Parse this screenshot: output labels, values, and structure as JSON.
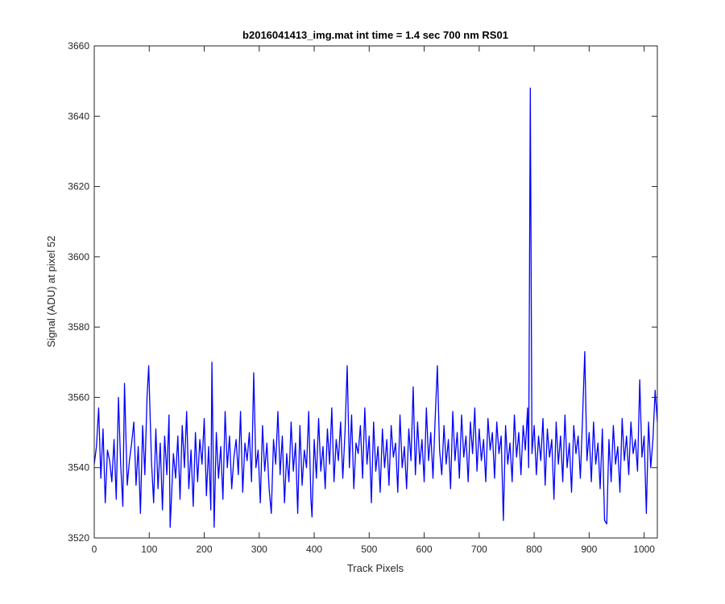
{
  "chart_data": {
    "type": "line",
    "title": "b2016041413_img.mat int time = 1.4 sec  700 nm RS01",
    "xlabel": "Track Pixels",
    "ylabel": "Signal (ADU) at pixel 52",
    "xlim": [
      0,
      1024
    ],
    "ylim": [
      3520,
      3660
    ],
    "xticks": [
      0,
      100,
      200,
      300,
      400,
      500,
      600,
      700,
      800,
      900,
      1000
    ],
    "yticks": [
      3520,
      3540,
      3560,
      3580,
      3600,
      3620,
      3640,
      3660
    ],
    "xtick_labels": [
      "0",
      "100",
      "200",
      "300",
      "400",
      "500",
      "600",
      "700",
      "800",
      "900",
      "1000"
    ],
    "ytick_labels": [
      "3520",
      "3540",
      "3560",
      "3580",
      "3600",
      "3620",
      "3640",
      "3660"
    ],
    "grid": false,
    "series": [
      {
        "color": "#0000ff",
        "points": [
          [
            0,
            3541
          ],
          [
            4,
            3546
          ],
          [
            8,
            3557
          ],
          [
            12,
            3537
          ],
          [
            16,
            3551
          ],
          [
            20,
            3530
          ],
          [
            24,
            3545
          ],
          [
            28,
            3542
          ],
          [
            32,
            3536
          ],
          [
            36,
            3548
          ],
          [
            40,
            3531
          ],
          [
            44,
            3560
          ],
          [
            48,
            3541
          ],
          [
            52,
            3529
          ],
          [
            55,
            3564
          ],
          [
            60,
            3535
          ],
          [
            64,
            3542
          ],
          [
            68,
            3547
          ],
          [
            72,
            3553
          ],
          [
            76,
            3535
          ],
          [
            80,
            3546
          ],
          [
            84,
            3527
          ],
          [
            88,
            3552
          ],
          [
            92,
            3538
          ],
          [
            96,
            3560
          ],
          [
            99,
            3569
          ],
          [
            104,
            3542
          ],
          [
            108,
            3530
          ],
          [
            112,
            3551
          ],
          [
            116,
            3534
          ],
          [
            120,
            3547
          ],
          [
            124,
            3528
          ],
          [
            128,
            3549
          ],
          [
            132,
            3538
          ],
          [
            136,
            3555
          ],
          [
            138,
            3523
          ],
          [
            144,
            3544
          ],
          [
            148,
            3537
          ],
          [
            152,
            3549
          ],
          [
            156,
            3531
          ],
          [
            160,
            3552
          ],
          [
            164,
            3540
          ],
          [
            168,
            3556
          ],
          [
            172,
            3534
          ],
          [
            176,
            3545
          ],
          [
            180,
            3529
          ],
          [
            184,
            3550
          ],
          [
            188,
            3536
          ],
          [
            192,
            3548
          ],
          [
            196,
            3541
          ],
          [
            200,
            3554
          ],
          [
            204,
            3532
          ],
          [
            208,
            3546
          ],
          [
            212,
            3528
          ],
          [
            214,
            3570
          ],
          [
            218,
            3523
          ],
          [
            222,
            3550
          ],
          [
            226,
            3537
          ],
          [
            230,
            3546
          ],
          [
            234,
            3531
          ],
          [
            238,
            3556
          ],
          [
            242,
            3540
          ],
          [
            246,
            3549
          ],
          [
            250,
            3534
          ],
          [
            254,
            3543
          ],
          [
            258,
            3548
          ],
          [
            262,
            3538
          ],
          [
            266,
            3556
          ],
          [
            270,
            3533
          ],
          [
            274,
            3547
          ],
          [
            278,
            3542
          ],
          [
            282,
            3550
          ],
          [
            286,
            3536
          ],
          [
            290,
            3567
          ],
          [
            294,
            3540
          ],
          [
            298,
            3545
          ],
          [
            302,
            3530
          ],
          [
            306,
            3552
          ],
          [
            310,
            3539
          ],
          [
            314,
            3547
          ],
          [
            318,
            3534
          ],
          [
            322,
            3527
          ],
          [
            326,
            3548
          ],
          [
            330,
            3541
          ],
          [
            334,
            3556
          ],
          [
            338,
            3538
          ],
          [
            342,
            3549
          ],
          [
            346,
            3530
          ],
          [
            350,
            3544
          ],
          [
            354,
            3536
          ],
          [
            358,
            3553
          ],
          [
            362,
            3539
          ],
          [
            366,
            3547
          ],
          [
            370,
            3527
          ],
          [
            374,
            3552
          ],
          [
            378,
            3535
          ],
          [
            382,
            3545
          ],
          [
            386,
            3540
          ],
          [
            390,
            3556
          ],
          [
            394,
            3531
          ],
          [
            396,
            3526
          ],
          [
            400,
            3548
          ],
          [
            404,
            3537
          ],
          [
            408,
            3554
          ],
          [
            412,
            3539
          ],
          [
            416,
            3546
          ],
          [
            420,
            3534
          ],
          [
            424,
            3551
          ],
          [
            428,
            3541
          ],
          [
            432,
            3557
          ],
          [
            436,
            3536
          ],
          [
            440,
            3548
          ],
          [
            444,
            3542
          ],
          [
            448,
            3553
          ],
          [
            452,
            3537
          ],
          [
            456,
            3550
          ],
          [
            460,
            3569
          ],
          [
            464,
            3540
          ],
          [
            468,
            3555
          ],
          [
            472,
            3534
          ],
          [
            476,
            3547
          ],
          [
            480,
            3544
          ],
          [
            484,
            3552
          ],
          [
            488,
            3537
          ],
          [
            492,
            3557
          ],
          [
            496,
            3541
          ],
          [
            500,
            3549
          ],
          [
            504,
            3530
          ],
          [
            508,
            3553
          ],
          [
            512,
            3539
          ],
          [
            516,
            3546
          ],
          [
            520,
            3533
          ],
          [
            524,
            3551
          ],
          [
            528,
            3540
          ],
          [
            532,
            3548
          ],
          [
            536,
            3535
          ],
          [
            540,
            3552
          ],
          [
            544,
            3543
          ],
          [
            548,
            3547
          ],
          [
            552,
            3533
          ],
          [
            556,
            3555
          ],
          [
            560,
            3540
          ],
          [
            564,
            3546
          ],
          [
            568,
            3534
          ],
          [
            572,
            3551
          ],
          [
            576,
            3542
          ],
          [
            580,
            3563
          ],
          [
            584,
            3538
          ],
          [
            588,
            3553
          ],
          [
            592,
            3541
          ],
          [
            596,
            3548
          ],
          [
            600,
            3536
          ],
          [
            604,
            3557
          ],
          [
            608,
            3542
          ],
          [
            612,
            3550
          ],
          [
            616,
            3537
          ],
          [
            620,
            3554
          ],
          [
            624,
            3569
          ],
          [
            628,
            3545
          ],
          [
            632,
            3538
          ],
          [
            636,
            3552
          ],
          [
            640,
            3541
          ],
          [
            644,
            3548
          ],
          [
            648,
            3534
          ],
          [
            652,
            3556
          ],
          [
            656,
            3542
          ],
          [
            660,
            3550
          ],
          [
            664,
            3537
          ],
          [
            668,
            3555
          ],
          [
            672,
            3543
          ],
          [
            676,
            3549
          ],
          [
            680,
            3536
          ],
          [
            684,
            3553
          ],
          [
            688,
            3544
          ],
          [
            692,
            3557
          ],
          [
            696,
            3539
          ],
          [
            700,
            3551
          ],
          [
            704,
            3542
          ],
          [
            708,
            3548
          ],
          [
            712,
            3536
          ],
          [
            716,
            3554
          ],
          [
            720,
            3545
          ],
          [
            724,
            3550
          ],
          [
            728,
            3537
          ],
          [
            732,
            3553
          ],
          [
            736,
            3544
          ],
          [
            740,
            3549
          ],
          [
            744,
            3525
          ],
          [
            748,
            3552
          ],
          [
            752,
            3541
          ],
          [
            756,
            3547
          ],
          [
            760,
            3536
          ],
          [
            764,
            3555
          ],
          [
            768,
            3543
          ],
          [
            772,
            3550
          ],
          [
            776,
            3538
          ],
          [
            780,
            3552
          ],
          [
            784,
            3545
          ],
          [
            788,
            3557
          ],
          [
            790,
            3540
          ],
          [
            793,
            3648
          ],
          [
            796,
            3544
          ],
          [
            800,
            3552
          ],
          [
            804,
            3538
          ],
          [
            808,
            3549
          ],
          [
            812,
            3542
          ],
          [
            816,
            3554
          ],
          [
            820,
            3535
          ],
          [
            824,
            3551
          ],
          [
            828,
            3543
          ],
          [
            832,
            3548
          ],
          [
            836,
            3531
          ],
          [
            840,
            3553
          ],
          [
            844,
            3541
          ],
          [
            848,
            3549
          ],
          [
            852,
            3536
          ],
          [
            856,
            3555
          ],
          [
            860,
            3540
          ],
          [
            864,
            3547
          ],
          [
            868,
            3533
          ],
          [
            872,
            3552
          ],
          [
            876,
            3544
          ],
          [
            880,
            3549
          ],
          [
            884,
            3537
          ],
          [
            888,
            3554
          ],
          [
            892,
            3573
          ],
          [
            896,
            3542
          ],
          [
            900,
            3550
          ],
          [
            904,
            3536
          ],
          [
            908,
            3553
          ],
          [
            912,
            3541
          ],
          [
            916,
            3547
          ],
          [
            920,
            3534
          ],
          [
            924,
            3551
          ],
          [
            928,
            3525
          ],
          [
            932,
            3524
          ],
          [
            936,
            3548
          ],
          [
            940,
            3536
          ],
          [
            944,
            3552
          ],
          [
            948,
            3541
          ],
          [
            952,
            3546
          ],
          [
            956,
            3533
          ],
          [
            960,
            3554
          ],
          [
            964,
            3542
          ],
          [
            968,
            3549
          ],
          [
            972,
            3538
          ],
          [
            976,
            3553
          ],
          [
            980,
            3544
          ],
          [
            984,
            3548
          ],
          [
            988,
            3539
          ],
          [
            992,
            3565
          ],
          [
            996,
            3543
          ],
          [
            1000,
            3549
          ],
          [
            1004,
            3527
          ],
          [
            1008,
            3553
          ],
          [
            1012,
            3540
          ],
          [
            1016,
            3548
          ],
          [
            1020,
            3562
          ],
          [
            1024,
            3553
          ]
        ]
      }
    ]
  }
}
